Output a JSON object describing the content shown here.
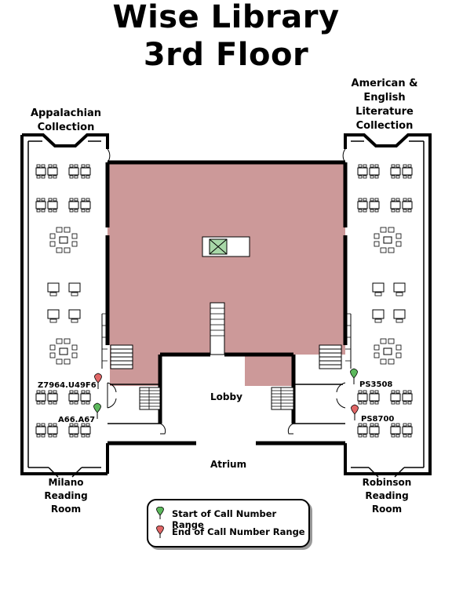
{
  "title": {
    "line1": "Wise Library",
    "line2": "3rd Floor"
  },
  "labels": {
    "appalachian": "Appalachian Collection",
    "american": "American & English Literature Collection",
    "lobby": "Lobby",
    "atrium": "Atrium",
    "milano": "Milano Reading Room",
    "robinson": "Robinson Reading Room"
  },
  "call_numbers": {
    "left_end": "Z7964.U49F6",
    "left_start": "A66.A67",
    "right_start": "PS3508",
    "right_end": "PS8700"
  },
  "legend": {
    "start": "Start of Call Number Range",
    "end": "End of Call Number Range",
    "start_color": "#5cb85c",
    "end_color": "#e06666"
  },
  "colors": {
    "restricted_area": "#cc9999"
  }
}
